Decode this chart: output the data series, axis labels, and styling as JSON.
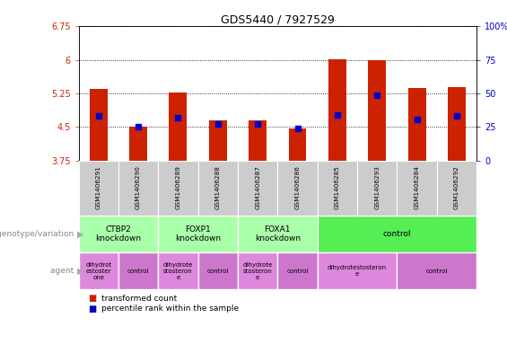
{
  "title": "GDS5440 / 7927529",
  "samples": [
    "GSM1406291",
    "GSM1406290",
    "GSM1406289",
    "GSM1406288",
    "GSM1406287",
    "GSM1406286",
    "GSM1406285",
    "GSM1406293",
    "GSM1406284",
    "GSM1406292"
  ],
  "bar_values": [
    5.35,
    4.5,
    5.28,
    4.65,
    4.65,
    4.47,
    6.01,
    5.99,
    5.38,
    5.4
  ],
  "blue_values": [
    4.75,
    4.5,
    4.72,
    4.57,
    4.57,
    4.47,
    4.77,
    5.22,
    4.67,
    4.75
  ],
  "ymin": 3.75,
  "ymax": 6.75,
  "yticks": [
    3.75,
    4.5,
    5.25,
    6.0,
    6.75
  ],
  "ytick_labels": [
    "3.75",
    "4.5",
    "5.25",
    "6",
    "6.75"
  ],
  "y2min": 0,
  "y2max": 100,
  "y2ticks": [
    0,
    25,
    50,
    75,
    100
  ],
  "y2tick_labels": [
    "0",
    "25",
    "50",
    "75",
    "100%"
  ],
  "bar_color": "#cc2200",
  "blue_color": "#0000cc",
  "bar_width": 0.45,
  "genotype_groups": [
    {
      "label": "CTBP2\nknockdown",
      "start": 0,
      "end": 2,
      "color": "#aaffaa"
    },
    {
      "label": "FOXP1\nknockdown",
      "start": 2,
      "end": 4,
      "color": "#aaffaa"
    },
    {
      "label": "FOXA1\nknockdown",
      "start": 4,
      "end": 6,
      "color": "#aaffaa"
    },
    {
      "label": "control",
      "start": 6,
      "end": 10,
      "color": "#55ee55"
    }
  ],
  "agent_groups": [
    {
      "label": "dihydrot\nestoster\none",
      "start": 0,
      "end": 1,
      "color": "#dd88dd"
    },
    {
      "label": "control",
      "start": 1,
      "end": 2,
      "color": "#cc77cc"
    },
    {
      "label": "dihydrote\nstosteron\ne",
      "start": 2,
      "end": 3,
      "color": "#dd88dd"
    },
    {
      "label": "control",
      "start": 3,
      "end": 4,
      "color": "#cc77cc"
    },
    {
      "label": "dihydrote\nstosteron\ne",
      "start": 4,
      "end": 5,
      "color": "#dd88dd"
    },
    {
      "label": "control",
      "start": 5,
      "end": 6,
      "color": "#cc77cc"
    },
    {
      "label": "dihydrotestosteron\ne",
      "start": 6,
      "end": 8,
      "color": "#dd88dd"
    },
    {
      "label": "control",
      "start": 8,
      "end": 10,
      "color": "#cc77cc"
    }
  ],
  "label_genotype": "genotype/variation",
  "label_agent": "agent",
  "legend_red": "transformed count",
  "legend_blue": "percentile rank within the sample",
  "sample_bg_color": "#cccccc",
  "arrow_color": "#aaaaaa",
  "label_color": "#888888"
}
